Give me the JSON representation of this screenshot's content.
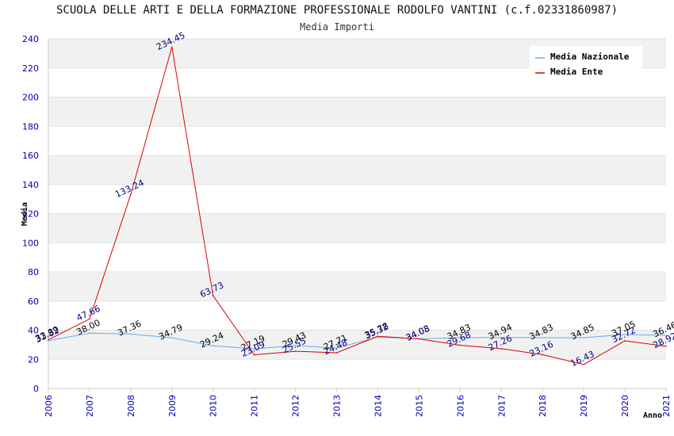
{
  "title": "SCUOLA DELLE ARTI E DELLA FORMAZIONE PROFESSIONALE RODOLFO VANTINI (c.f.02331860987)",
  "subtitle": "Media Importi",
  "chart_data": {
    "type": "line",
    "title": "SCUOLA DELLE ARTI E DELLA FORMAZIONE PROFESSIONALE RODOLFO VANTINI (c.f.02331860987)",
    "subtitle": "Media Importi",
    "xlabel": "Anno",
    "ylabel": "Media",
    "ylim": [
      0,
      240
    ],
    "yticks": [
      0,
      20,
      40,
      60,
      80,
      100,
      120,
      140,
      160,
      180,
      200,
      220,
      240
    ],
    "grid": "horizontal bands",
    "legend_position": "top-right",
    "categories": [
      "2006",
      "2007",
      "2008",
      "2009",
      "2010",
      "2011",
      "2012",
      "2013",
      "2014",
      "2015",
      "2016",
      "2017",
      "2018",
      "2019",
      "2020",
      "2021"
    ],
    "series": [
      {
        "name": "Media Nazionale",
        "color": "#66aaee",
        "label_color": "#000000",
        "values": [
          32.82,
          38.0,
          37.36,
          34.79,
          29.24,
          27.19,
          29.43,
          27.71,
          35.32,
          34.08,
          34.83,
          34.94,
          34.83,
          34.85,
          37.05,
          36.46
        ],
        "labels": [
          "32.82",
          "38.00",
          "37.36",
          "34.79",
          "29.24",
          "27.19",
          "29.43",
          "27.71",
          "35.32",
          "34.08",
          "34.83",
          "34.94",
          "34.83",
          "34.85",
          "37.05",
          "36.46"
        ]
      },
      {
        "name": "Media Ente",
        "color": "#dd0000",
        "label_color": "#000080",
        "values": [
          33.39,
          47.66,
          133.24,
          234.45,
          63.73,
          23.09,
          25.55,
          24.48,
          35.78,
          34.03,
          29.68,
          27.26,
          23.16,
          16.43,
          32.72,
          28.92
        ],
        "labels": [
          "33.39",
          "47.66",
          "133.24",
          "234.45",
          "63.73",
          "23.09",
          "25.55",
          "24.48",
          "35.78",
          "34.03",
          "29.68",
          "27.26",
          "23.16",
          "16.43",
          "32.72",
          "28.92"
        ]
      }
    ]
  }
}
